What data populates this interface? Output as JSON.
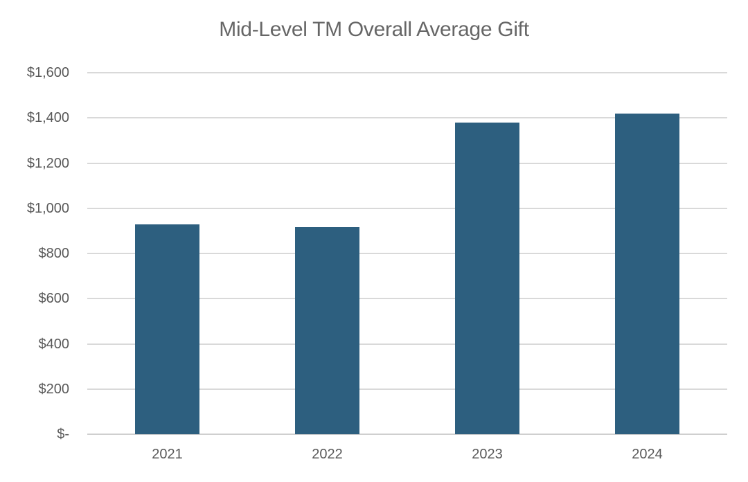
{
  "chart_data": {
    "type": "bar",
    "title": "Mid-Level TM Overall Average Gift",
    "categories": [
      "2021",
      "2022",
      "2023",
      "2024"
    ],
    "values": [
      930,
      915,
      1380,
      1420
    ],
    "xlabel": "",
    "ylabel": "",
    "ylim": [
      0,
      1600
    ],
    "ytick_step": 200,
    "ytick_labels": [
      "$-",
      "$200",
      "$400",
      "$600",
      "$800",
      "$1,000",
      "$1,200",
      "$1,400",
      "$1,600"
    ],
    "grid": "horizontal",
    "legend": "none",
    "colors": {
      "bar": "#2d5f7f",
      "gridline": "#d9d9d9",
      "axis_line": "#cfcfcf",
      "title_text": "#666666",
      "tick_text": "#595959",
      "background": "#ffffff"
    }
  }
}
